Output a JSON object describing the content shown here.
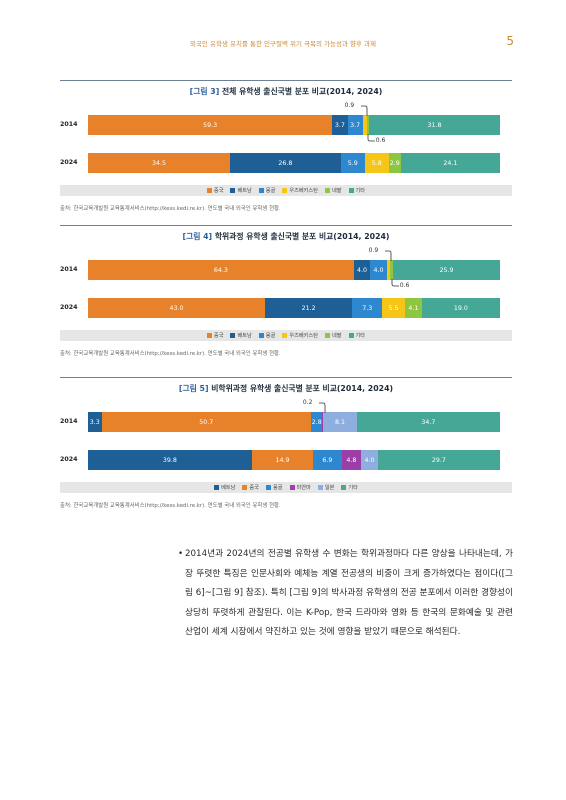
{
  "header": {
    "title": "외국인 유학생 유치를 통한 인구절벽 위기 극복의 가능성과 향후 과제",
    "page": "5"
  },
  "colors": {
    "중국": "#E8822A",
    "베트남": "#1E5F95",
    "몽골": "#2E88D0",
    "우즈베키스탄": "#F5C518",
    "네팔": "#8DC63F",
    "기타": "#45A796",
    "미얀마": "#9C3EA8",
    "일본": "#8FAEE0"
  },
  "figures": [
    {
      "label": "[그림 3]",
      "title": "전체 유학생 출신국별 분포 비교(2014, 2024)",
      "legend": [
        "중국",
        "베트남",
        "몽골",
        "우즈베키스탄",
        "네팔",
        "기타"
      ],
      "source": "출처: 한국교육개발원 교육통계서비스(http://kess.kedi.re.kr). 연도별 국내 외국인 유학생 현황.",
      "rows": [
        {
          "year": "2014",
          "segments": [
            {
              "k": "중국",
              "v": 59.3,
              "t": "59.3"
            },
            {
              "k": "베트남",
              "v": 3.7,
              "t": "3.7"
            },
            {
              "k": "몽골",
              "v": 3.7,
              "t": "3.7"
            },
            {
              "k": "우즈베키스탄",
              "v": 0.9,
              "t": ""
            },
            {
              "k": "네팔",
              "v": 0.6,
              "t": ""
            },
            {
              "k": "기타",
              "v": 31.8,
              "t": "31.8"
            }
          ],
          "above": {
            "text": "0.9",
            "seg": 3
          },
          "below": {
            "text": "0.6",
            "seg": 4
          }
        },
        {
          "year": "2024",
          "segments": [
            {
              "k": "중국",
              "v": 34.5,
              "t": "34.5"
            },
            {
              "k": "베트남",
              "v": 26.8,
              "t": "26.8"
            },
            {
              "k": "몽골",
              "v": 5.9,
              "t": "5.9"
            },
            {
              "k": "우즈베키스탄",
              "v": 5.8,
              "t": "5.8"
            },
            {
              "k": "네팔",
              "v": 2.9,
              "t": "2.9"
            },
            {
              "k": "기타",
              "v": 24.1,
              "t": "24.1"
            }
          ]
        }
      ]
    },
    {
      "label": "[그림 4]",
      "title": "학위과정 유학생 출신국별 분포 비교(2014, 2024)",
      "legend": [
        "중국",
        "베트남",
        "몽골",
        "우즈베키스탄",
        "네팔",
        "기타"
      ],
      "source": "출처: 한국교육개발원 교육통계서비스(http://kess.kedi.re.kr). 연도별 국내 외국인 유학생 현황.",
      "rows": [
        {
          "year": "2014",
          "segments": [
            {
              "k": "중국",
              "v": 64.3,
              "t": "64.3"
            },
            {
              "k": "베트남",
              "v": 4.0,
              "t": "4.0"
            },
            {
              "k": "몽골",
              "v": 4.0,
              "t": "4.0"
            },
            {
              "k": "우즈베키스탄",
              "v": 0.9,
              "t": ""
            },
            {
              "k": "네팔",
              "v": 0.6,
              "t": ""
            },
            {
              "k": "기타",
              "v": 25.9,
              "t": "25.9"
            }
          ],
          "above": {
            "text": "0.9",
            "seg": 3
          },
          "below": {
            "text": "0.6",
            "seg": 4
          }
        },
        {
          "year": "2024",
          "segments": [
            {
              "k": "중국",
              "v": 43.0,
              "t": "43.0"
            },
            {
              "k": "베트남",
              "v": 21.2,
              "t": "21.2"
            },
            {
              "k": "몽골",
              "v": 7.3,
              "t": "7.3"
            },
            {
              "k": "우즈베키스탄",
              "v": 5.5,
              "t": "5.5"
            },
            {
              "k": "네팔",
              "v": 4.1,
              "t": "4.1"
            },
            {
              "k": "기타",
              "v": 19.0,
              "t": "19.0"
            }
          ]
        }
      ]
    },
    {
      "label": "[그림 5]",
      "title": "비학위과정 유학생 출신국별 분포 비교(2014, 2024)",
      "legend": [
        "베트남",
        "중국",
        "몽골",
        "미얀마",
        "일본",
        "기타"
      ],
      "source": "출처: 한국교육개발원 교육통계서비스(http://kess.kedi.re.kr). 연도별 국내 외국인 유학생 현황.",
      "rows": [
        {
          "year": "2014",
          "segments": [
            {
              "k": "베트남",
              "v": 3.3,
              "t": "3.3"
            },
            {
              "k": "중국",
              "v": 50.7,
              "t": "50.7"
            },
            {
              "k": "몽골",
              "v": 2.8,
              "t": "2.8"
            },
            {
              "k": "미얀마",
              "v": 0.2,
              "t": ""
            },
            {
              "k": "일본",
              "v": 8.1,
              "t": "8.1"
            },
            {
              "k": "기타",
              "v": 34.7,
              "t": "34.7"
            }
          ],
          "above": {
            "text": "0.2",
            "seg": 3
          }
        },
        {
          "year": "2024",
          "segments": [
            {
              "k": "베트남",
              "v": 39.8,
              "t": "39.8"
            },
            {
              "k": "중국",
              "v": 14.9,
              "t": "14.9"
            },
            {
              "k": "몽골",
              "v": 6.9,
              "t": "6.9"
            },
            {
              "k": "미얀마",
              "v": 4.8,
              "t": "4.8"
            },
            {
              "k": "일본",
              "v": 4.0,
              "t": "4.0"
            },
            {
              "k": "기타",
              "v": 29.7,
              "t": "29.7"
            }
          ]
        }
      ]
    }
  ],
  "chart_data": [
    {
      "type": "bar",
      "title": "전체 유학생 출신국별 분포 비교(2014, 2024)",
      "categories": [
        "2014",
        "2024"
      ],
      "series": [
        {
          "name": "중국",
          "values": [
            59.3,
            34.5
          ]
        },
        {
          "name": "베트남",
          "values": [
            3.7,
            26.8
          ]
        },
        {
          "name": "몽골",
          "values": [
            3.7,
            5.9
          ]
        },
        {
          "name": "우즈베키스탄",
          "values": [
            0.9,
            5.8
          ]
        },
        {
          "name": "네팔",
          "values": [
            0.6,
            2.9
          ]
        },
        {
          "name": "기타",
          "values": [
            31.8,
            24.1
          ]
        }
      ]
    },
    {
      "type": "bar",
      "title": "학위과정 유학생 출신국별 분포 비교(2014, 2024)",
      "categories": [
        "2014",
        "2024"
      ],
      "series": [
        {
          "name": "중국",
          "values": [
            64.3,
            43.0
          ]
        },
        {
          "name": "베트남",
          "values": [
            4.0,
            21.2
          ]
        },
        {
          "name": "몽골",
          "values": [
            4.0,
            7.3
          ]
        },
        {
          "name": "우즈베키스탄",
          "values": [
            0.9,
            5.5
          ]
        },
        {
          "name": "네팔",
          "values": [
            0.6,
            4.1
          ]
        },
        {
          "name": "기타",
          "values": [
            25.9,
            19.0
          ]
        }
      ]
    },
    {
      "type": "bar",
      "title": "비학위과정 유학생 출신국별 분포 비교(2014, 2024)",
      "categories": [
        "2014",
        "2024"
      ],
      "series": [
        {
          "name": "베트남",
          "values": [
            3.3,
            39.8
          ]
        },
        {
          "name": "중국",
          "values": [
            50.7,
            14.9
          ]
        },
        {
          "name": "몽골",
          "values": [
            2.8,
            6.9
          ]
        },
        {
          "name": "미얀마",
          "values": [
            0.2,
            4.8
          ]
        },
        {
          "name": "일본",
          "values": [
            8.1,
            4.0
          ]
        },
        {
          "name": "기타",
          "values": [
            34.7,
            29.7
          ]
        }
      ]
    }
  ],
  "body": {
    "text": "2014년과 2024년의 전공별 유학생 수 변화는 학위과정마다 다른 양상을 나타내는데, 가장 뚜렷한 특징은 인문사회와 예체능 계열 전공생의 비중이 크게 증가하였다는 점이다([그림 6]~[그림 9] 참조). 특히 [그림 9]의 박사과정 유학생의 전공 분포에서 이러한 경향성이 상당히 뚜렷하게 관찰된다. 이는 K-Pop, 한국 드라마와 영화 등 한국의 문화예술 및 관련 산업이 세계 시장에서 약진하고 있는 것에 영향을 받았기 때문으로 해석된다."
  }
}
